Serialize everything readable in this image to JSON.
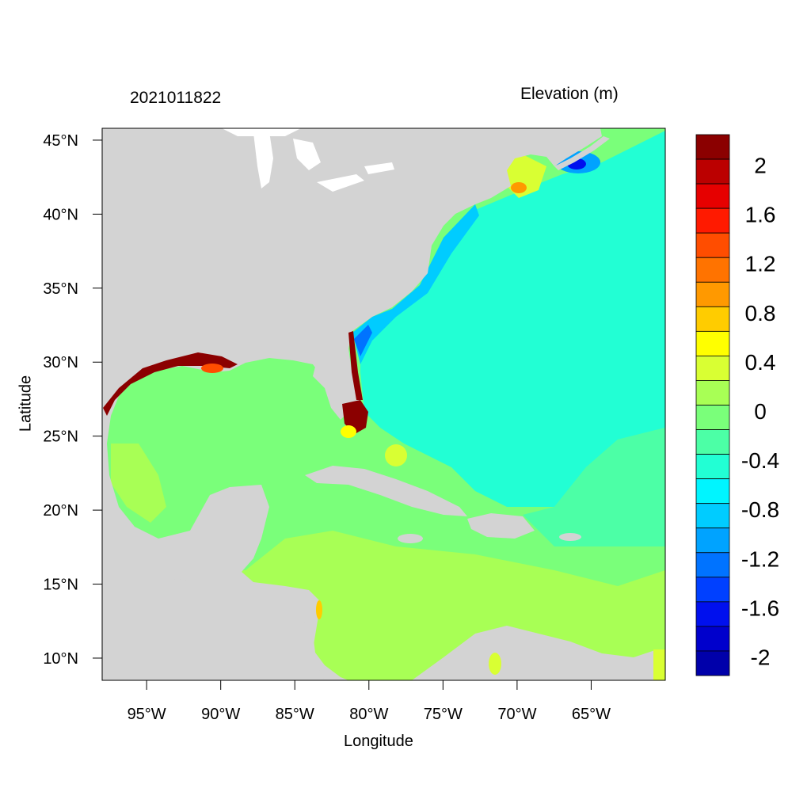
{
  "header": {
    "timestamp": "2021011822",
    "variable": "Elevation (m)"
  },
  "axes": {
    "xlabel": "Longitude",
    "ylabel": "Latitude",
    "xticks": [
      {
        "lon": -95,
        "label": "95°W"
      },
      {
        "lon": -90,
        "label": "90°W"
      },
      {
        "lon": -85,
        "label": "85°W"
      },
      {
        "lon": -80,
        "label": "80°W"
      },
      {
        "lon": -75,
        "label": "75°W"
      },
      {
        "lon": -70,
        "label": "70°W"
      },
      {
        "lon": -65,
        "label": "65°W"
      }
    ],
    "yticks": [
      {
        "lat": 45,
        "label": "45°N"
      },
      {
        "lat": 40,
        "label": "40°N"
      },
      {
        "lat": 35,
        "label": "35°N"
      },
      {
        "lat": 30,
        "label": "30°N"
      },
      {
        "lat": 25,
        "label": "25°N"
      },
      {
        "lat": 20,
        "label": "20°N"
      },
      {
        "lat": 15,
        "label": "15°N"
      },
      {
        "lat": 10,
        "label": "10°N"
      }
    ],
    "lon_range": [
      -98,
      -60
    ],
    "lat_range": [
      8.5,
      45.8
    ]
  },
  "colorbar": {
    "colors": [
      "#8b0000",
      "#bb0000",
      "#e60000",
      "#ff1a00",
      "#ff4d00",
      "#ff7300",
      "#ff9900",
      "#ffcc00",
      "#ffff00",
      "#d9ff33",
      "#a8ff55",
      "#7aff7a",
      "#4cffa6",
      "#22ffd4",
      "#00f5ff",
      "#00ccff",
      "#00a3ff",
      "#0073ff",
      "#0040ff",
      "#0010ee",
      "#0000cc",
      "#0000aa"
    ],
    "labels": [
      {
        "index": 1,
        "text": "2"
      },
      {
        "index": 3,
        "text": "1.6"
      },
      {
        "index": 5,
        "text": "1.2"
      },
      {
        "index": 7,
        "text": "0.8"
      },
      {
        "index": 9,
        "text": "0.4"
      },
      {
        "index": 11,
        "text": "0"
      },
      {
        "index": 13,
        "text": "-0.4"
      },
      {
        "index": 15,
        "text": "-0.8"
      },
      {
        "index": 17,
        "text": "-1.2"
      },
      {
        "index": 19,
        "text": "-1.6"
      },
      {
        "index": 21,
        "text": "-2"
      }
    ]
  },
  "colors": {
    "land": "#d3d3d3",
    "ocean_atlantic": "#22ffd4",
    "ocean_gulf": "#7aff7a",
    "caribbean": "#a8ff55",
    "surge_high": "#8b0000",
    "surge_low": "#0000cc"
  }
}
